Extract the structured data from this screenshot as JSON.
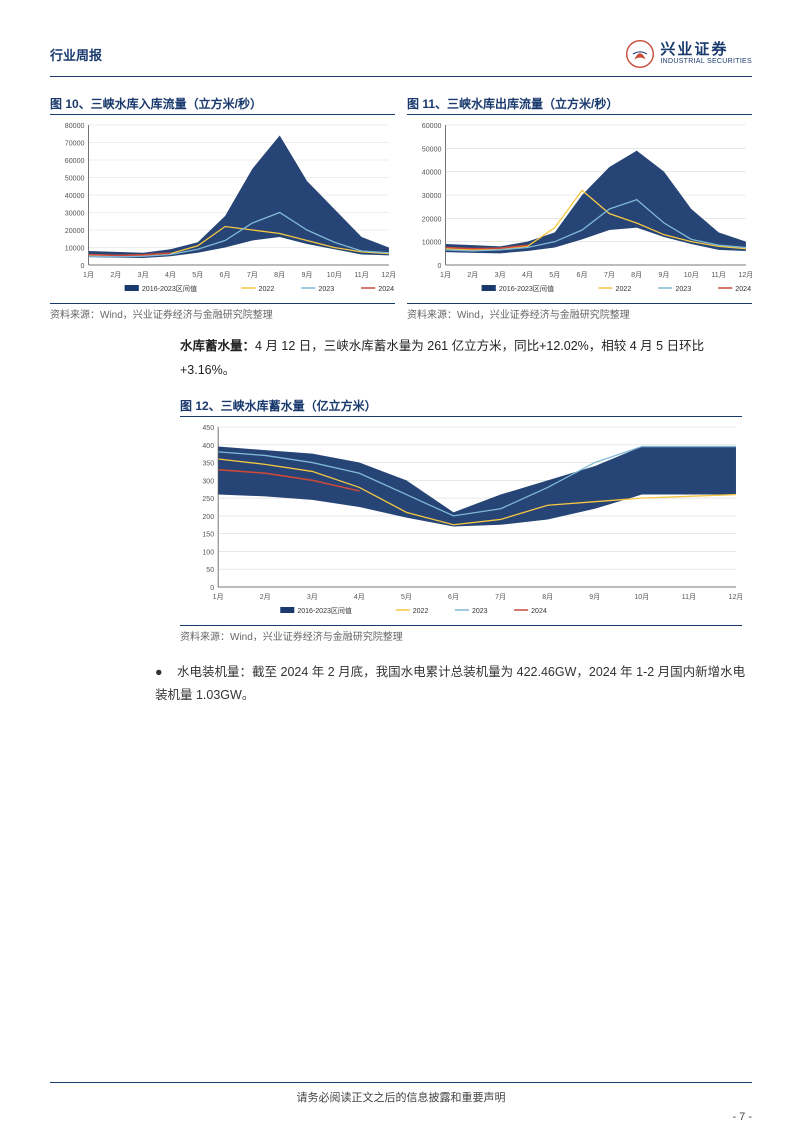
{
  "header": {
    "report_type": "行业周报",
    "logo_cn": "兴业证券",
    "logo_en": "INDUSTRIAL SECURITIES"
  },
  "chart10": {
    "title": "图 10、三峡水库入库流量（立方米/秒）",
    "type": "area-line",
    "source": "资料来源：Wind，兴业证券经济与金融研究院整理",
    "x_labels": [
      "1月",
      "2月",
      "3月",
      "4月",
      "5月",
      "6月",
      "7月",
      "8月",
      "9月",
      "10月",
      "11月",
      "12月"
    ],
    "ylim": [
      0,
      80000
    ],
    "ytick_step": 10000,
    "yticks": [
      0,
      10000,
      20000,
      30000,
      40000,
      50000,
      60000,
      70000,
      80000
    ],
    "area_color": "#1a3a6e",
    "line_2022_color": "#f5c742",
    "line_2023_color": "#7fb8d6",
    "line_2024_color": "#c94a3a",
    "background_color": "#ffffff",
    "grid_color": "#d9d9d9",
    "legend": [
      "2016-2023区间值",
      "2022",
      "2023",
      "2024"
    ],
    "area_upper": [
      8000,
      7500,
      7000,
      9000,
      13000,
      28000,
      55000,
      74000,
      48000,
      32000,
      16000,
      10000
    ],
    "area_lower": [
      4500,
      4200,
      4000,
      5000,
      7000,
      10000,
      14000,
      16000,
      12000,
      9000,
      6000,
      5500
    ],
    "line_2022": [
      5500,
      5000,
      5200,
      6500,
      11000,
      22000,
      20000,
      18000,
      14000,
      10000,
      7500,
      6500
    ],
    "line_2023": [
      5000,
      4800,
      5000,
      6000,
      9000,
      14000,
      24000,
      30000,
      20000,
      13000,
      8000,
      7000
    ],
    "line_2024": [
      6000,
      5500,
      5800,
      6800
    ]
  },
  "chart11": {
    "title": "图 11、三峡水库出库流量（立方米/秒）",
    "type": "area-line",
    "source": "资料来源：Wind，兴业证券经济与金融研究院整理",
    "x_labels": [
      "1月",
      "2月",
      "3月",
      "4月",
      "5月",
      "6月",
      "7月",
      "8月",
      "9月",
      "10月",
      "11月",
      "12月"
    ],
    "ylim": [
      0,
      60000
    ],
    "ytick_step": 10000,
    "yticks": [
      0,
      10000,
      20000,
      30000,
      40000,
      50000,
      60000
    ],
    "area_color": "#1a3a6e",
    "line_2022_color": "#f5c742",
    "line_2023_color": "#7fb8d6",
    "line_2024_color": "#c94a3a",
    "background_color": "#ffffff",
    "grid_color": "#d9d9d9",
    "legend": [
      "2016-2023区间值",
      "2022",
      "2023",
      "2024"
    ],
    "area_upper": [
      9000,
      8500,
      8000,
      10000,
      14000,
      30000,
      42000,
      49000,
      40000,
      24000,
      14000,
      10000
    ],
    "area_lower": [
      5500,
      5200,
      5000,
      6000,
      7500,
      11000,
      15000,
      16000,
      12000,
      9000,
      6500,
      6000
    ],
    "line_2022": [
      7000,
      6500,
      6800,
      8000,
      16000,
      32000,
      22000,
      18000,
      13000,
      10000,
      8000,
      7000
    ],
    "line_2023": [
      6500,
      6000,
      6500,
      7500,
      10000,
      15000,
      24000,
      28000,
      18000,
      11000,
      8500,
      7500
    ],
    "line_2024": [
      7500,
      7000,
      7200,
      8500
    ]
  },
  "para1": {
    "label": "水库蓄水量：",
    "text": "4 月 12 日，三峡水库蓄水量为 261 亿立方米，同比+12.02%，相较 4 月 5 日环比+3.16%。"
  },
  "chart12": {
    "title": "图 12、三峡水库蓄水量（亿立方米）",
    "type": "area-line",
    "source": "资料来源：Wind，兴业证券经济与金融研究院整理",
    "x_labels": [
      "1月",
      "2月",
      "3月",
      "4月",
      "5月",
      "6月",
      "7月",
      "8月",
      "9月",
      "10月",
      "11月",
      "12月"
    ],
    "ylim": [
      0,
      450
    ],
    "ytick_step": 50,
    "yticks": [
      0,
      50,
      100,
      150,
      200,
      250,
      300,
      350,
      400,
      450
    ],
    "area_color": "#1a3a6e",
    "line_2022_color": "#f5c742",
    "line_2023_color": "#7fb8d6",
    "line_2024_color": "#c94a3a",
    "background_color": "#ffffff",
    "grid_color": "#d9d9d9",
    "legend": [
      "2016-2023区间值",
      "2022",
      "2023",
      "2024"
    ],
    "area_upper": [
      395,
      385,
      375,
      350,
      300,
      210,
      260,
      300,
      340,
      395,
      395,
      395
    ],
    "area_lower": [
      260,
      255,
      245,
      225,
      195,
      170,
      175,
      190,
      220,
      260,
      260,
      260
    ],
    "line_2022": [
      360,
      345,
      325,
      280,
      210,
      175,
      190,
      230,
      240,
      250,
      255,
      260
    ],
    "line_2023": [
      380,
      370,
      350,
      320,
      260,
      200,
      220,
      280,
      350,
      395,
      395,
      395
    ],
    "line_2024": [
      330,
      320,
      300,
      270
    ]
  },
  "para2": {
    "label": "水电装机量：",
    "text": "截至 2024 年 2 月底，我国水电累计总装机量为 422.46GW，2024 年 1-2 月国内新增水电装机量 1.03GW。"
  },
  "footer": {
    "disclaimer": "请务必阅读正文之后的信息披露和重要声明",
    "page": "- 7 -"
  },
  "colors": {
    "brand": "#1a3a6e",
    "accent_red": "#c94a3a"
  }
}
